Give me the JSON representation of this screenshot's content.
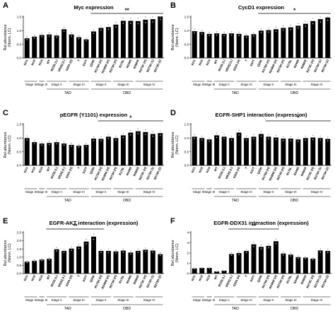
{
  "categories": [
    "KO1",
    "KO2",
    "KO4",
    "WT",
    "W23S (L)",
    "W53Q (L)",
    "S33A (H)",
    "Y",
    "S37T",
    "Q26K",
    "R175H (H)",
    "R248W (H)",
    "R273H (H)",
    "R175L",
    "R249S",
    "R282W",
    "R273C (H)",
    "R273H (1)",
    "R273H (2)"
  ],
  "stage_labels": [
    "Stage II",
    "Stage III",
    "Stage II",
    "Stage III",
    "Stage II",
    "Stage III",
    "Stage IV"
  ],
  "domain_labels": [
    "TAD",
    "DBD"
  ],
  "y_axis_label": [
    "Rel.abundance",
    "(Norm. LC)"
  ],
  "chart_data": [
    {
      "type": "bar",
      "panel": "A",
      "title": "Myc expression",
      "ylim": [
        0,
        1.5
      ],
      "yticks": [
        "0.0",
        "0.5",
        "1.0",
        "1.5"
      ],
      "values": [
        0.72,
        0.78,
        0.84,
        0.86,
        0.82,
        1.05,
        0.86,
        0.76,
        0.68,
        0.97,
        1.1,
        1.13,
        1.22,
        1.36,
        1.36,
        1.35,
        1.4,
        1.42,
        1.52
      ],
      "significance": {
        "label": "**",
        "from": 9,
        "to": 18
      }
    },
    {
      "type": "bar",
      "panel": "B",
      "title": "CycD1 expression",
      "ylim": [
        0,
        1.5
      ],
      "yticks": [
        "0.0",
        "0.5",
        "1.0",
        "1.5"
      ],
      "values": [
        0.98,
        0.95,
        0.88,
        0.9,
        0.88,
        0.9,
        0.88,
        0.82,
        0.87,
        1.0,
        1.02,
        1.05,
        1.1,
        1.12,
        1.18,
        1.25,
        1.35,
        1.42,
        1.48
      ],
      "significance": {
        "label": "*",
        "from": 9,
        "to": 18
      }
    },
    {
      "type": "bar",
      "panel": "C",
      "title": "pEGFR (Y1101) expression",
      "ylim": [
        0,
        1.5
      ],
      "yticks": [
        "0.0",
        "0.5",
        "1.0",
        "1.5"
      ],
      "values": [
        1.0,
        0.85,
        0.8,
        0.82,
        0.85,
        0.8,
        0.75,
        0.72,
        0.75,
        0.98,
        0.97,
        1.05,
        1.0,
        1.1,
        1.2,
        1.25,
        1.22,
        1.15,
        1.18
      ],
      "significance": {
        "label": "*",
        "from": 10,
        "to": 18
      }
    },
    {
      "type": "bar",
      "panel": "D",
      "title": "EGFR-SHP1 interaction (expression)",
      "ylim": [
        0,
        1.5
      ],
      "yticks": [
        "0.0",
        "0.5",
        "1.0",
        "1.5"
      ],
      "values": [
        1.05,
        1.0,
        0.95,
        1.1,
        1.05,
        1.0,
        1.2,
        1.0,
        1.05,
        1.15,
        1.05,
        1.02,
        0.98,
        0.98,
        0.95,
        1.0,
        1.02,
        1.0,
        0.97
      ],
      "significance": {
        "label": "*",
        "from": 10,
        "to": 18
      }
    },
    {
      "type": "bar",
      "panel": "E",
      "title": "EGFR-AKT interaction (expression)",
      "ylim": [
        0,
        2.5
      ],
      "yticks": [
        "0.0",
        "0.5",
        "1.0",
        "1.5",
        "2.0",
        "2.5"
      ],
      "values": [
        0.72,
        0.78,
        0.85,
        0.9,
        1.48,
        1.38,
        1.52,
        1.65,
        1.95,
        2.25,
        1.38,
        1.38,
        1.35,
        1.4,
        1.28,
        1.38,
        1.45,
        1.4,
        1.18
      ],
      "significance": {
        "label": "**",
        "from": 3,
        "to": 10
      }
    },
    {
      "type": "bar",
      "panel": "F",
      "title": "EGFR-DDX31 interaction (expression)",
      "ylim": [
        0,
        4
      ],
      "yticks": [
        "0",
        "1",
        "2",
        "3",
        "4"
      ],
      "values": [
        0.5,
        0.55,
        0.55,
        0.2,
        0.28,
        1.9,
        2.0,
        2.2,
        2.85,
        2.6,
        2.7,
        3.15,
        1.95,
        1.85,
        1.6,
        1.55,
        1.45,
        2.25,
        2.2
      ],
      "significance": {
        "label": "**",
        "from": 5,
        "to": 11
      }
    }
  ]
}
